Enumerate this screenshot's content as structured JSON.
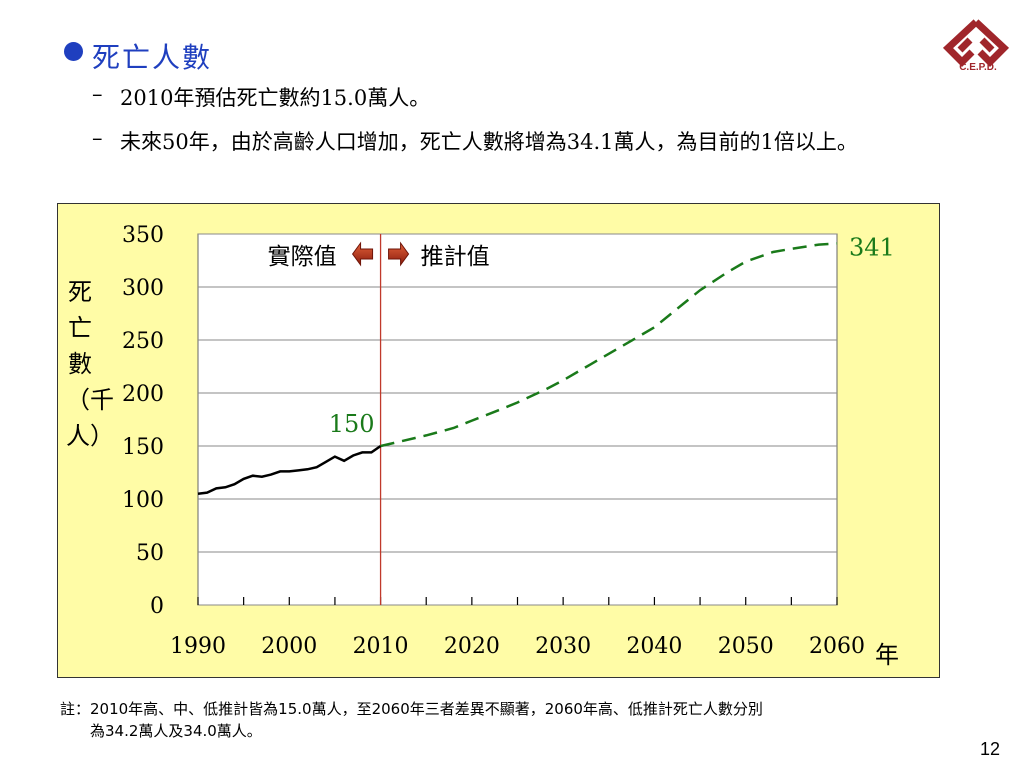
{
  "slide": {
    "heading": "死亡人數",
    "bullets": [
      {
        "dash": "–",
        "text": "2010年預估死亡數約15.0萬人。"
      },
      {
        "dash": "–",
        "text": "未來50年，由於高齡人口增加，死亡人數將增為34.1萬人，為目前的1倍以上。"
      }
    ],
    "note_line1": "註：2010年高、中、低推計皆為15.0萬人，至2060年三者差異不顯著，2060年高、低推計死亡人數分別",
    "note_line2": "為34.2萬人及34.0萬人。",
    "page_number": "12",
    "logo_text": "C.E.P.D."
  },
  "colors": {
    "heading": "#1f3fbf",
    "chart_bg": "#fffca6",
    "actual_line": "#000000",
    "projected_line": "#1a7a1a",
    "divider": "#c0392b",
    "arrow": "#c0391b",
    "logo": "#a0262b"
  },
  "chart_data": {
    "type": "line",
    "y_title": "死亡數（千人）",
    "x_unit_label": "年",
    "x_ticks": [
      1990,
      2000,
      2010,
      2020,
      2030,
      2040,
      2050,
      2060
    ],
    "y_ticks": [
      0,
      50,
      100,
      150,
      200,
      250,
      300,
      350
    ],
    "xlim": [
      1990,
      2060
    ],
    "ylim": [
      0,
      350
    ],
    "grid": true,
    "legend_left": "實際值",
    "legend_right": "推計值",
    "label_2010": "150",
    "label_2060": "341",
    "series": [
      {
        "name": "實際值",
        "style": "solid",
        "points": [
          [
            1990,
            105
          ],
          [
            1991,
            106
          ],
          [
            1992,
            110
          ],
          [
            1993,
            111
          ],
          [
            1994,
            114
          ],
          [
            1995,
            119
          ],
          [
            1996,
            122
          ],
          [
            1997,
            121
          ],
          [
            1998,
            123
          ],
          [
            1999,
            126
          ],
          [
            2000,
            126
          ],
          [
            2001,
            127
          ],
          [
            2002,
            128
          ],
          [
            2003,
            130
          ],
          [
            2004,
            135
          ],
          [
            2005,
            140
          ],
          [
            2006,
            136
          ],
          [
            2007,
            141
          ],
          [
            2008,
            144
          ],
          [
            2009,
            144
          ],
          [
            2010,
            150
          ]
        ]
      },
      {
        "name": "推計值",
        "style": "dashed",
        "points": [
          [
            2010,
            150
          ],
          [
            2012,
            154
          ],
          [
            2015,
            160
          ],
          [
            2018,
            167
          ],
          [
            2020,
            174
          ],
          [
            2023,
            184
          ],
          [
            2025,
            191
          ],
          [
            2028,
            203
          ],
          [
            2030,
            212
          ],
          [
            2033,
            227
          ],
          [
            2035,
            237
          ],
          [
            2038,
            252
          ],
          [
            2040,
            262
          ],
          [
            2043,
            283
          ],
          [
            2045,
            297
          ],
          [
            2048,
            314
          ],
          [
            2050,
            324
          ],
          [
            2053,
            333
          ],
          [
            2055,
            336
          ],
          [
            2058,
            340
          ],
          [
            2060,
            341
          ]
        ]
      }
    ]
  }
}
